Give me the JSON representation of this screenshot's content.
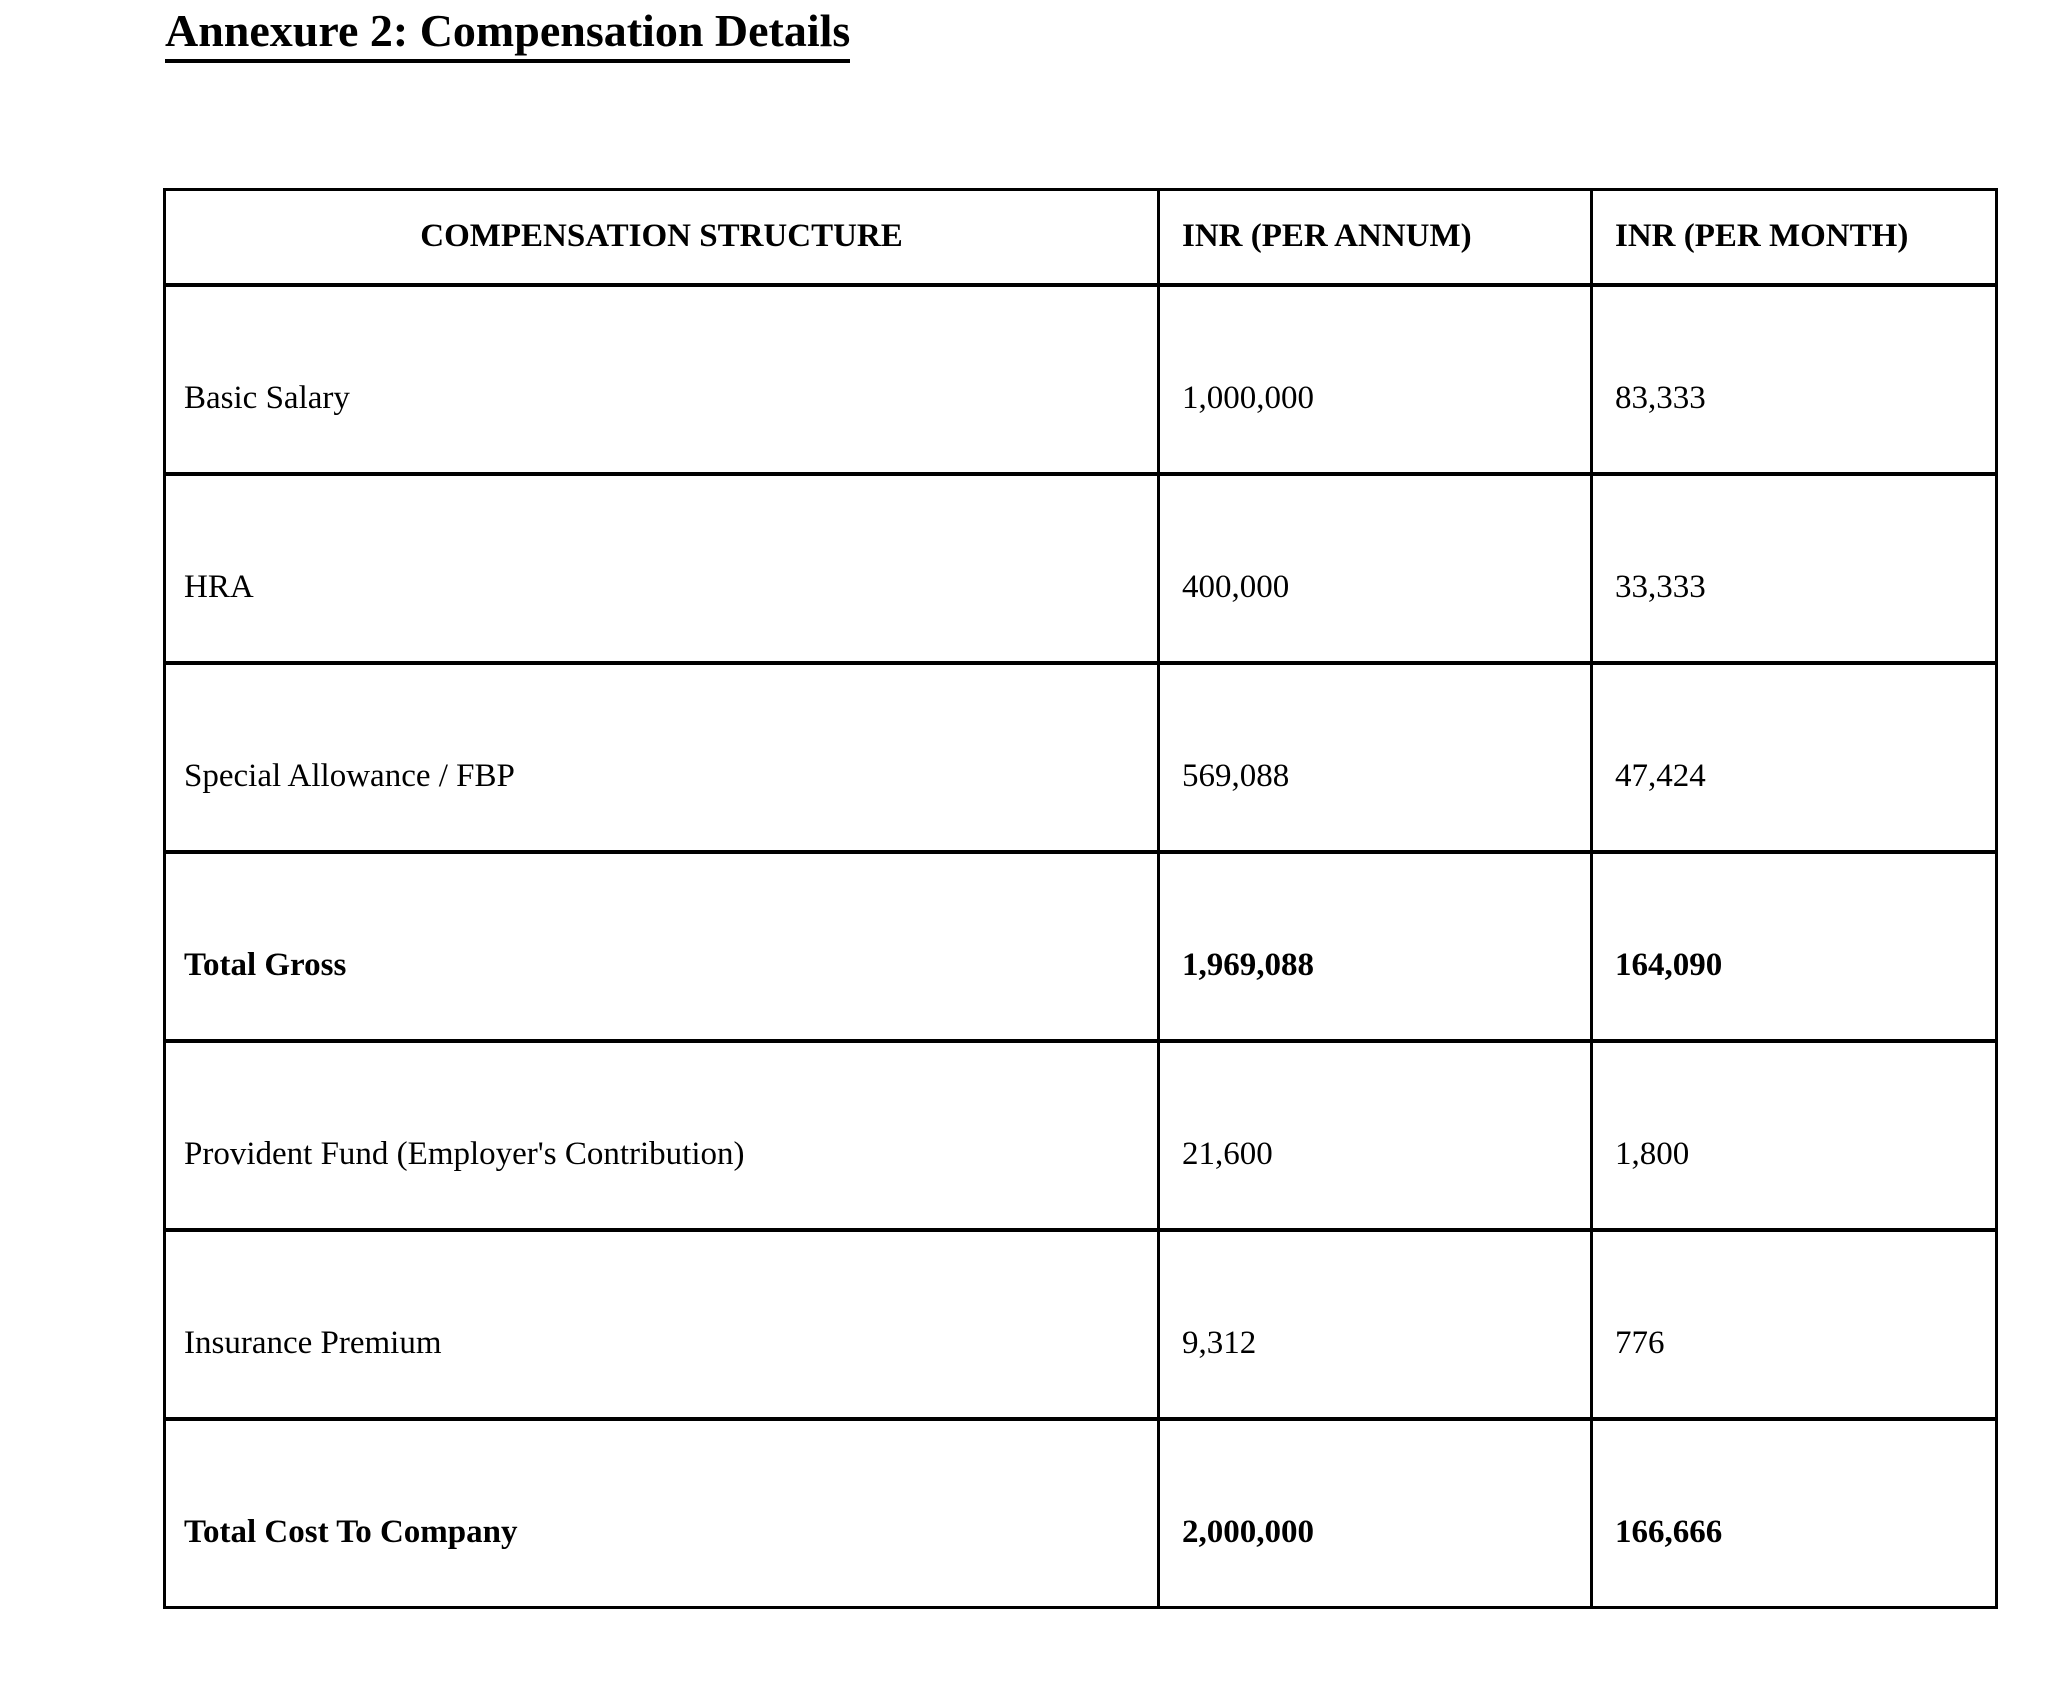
{
  "document": {
    "title": "Annexure 2: Compensation Details"
  },
  "table": {
    "headers": [
      "COMPENSATION STRUCTURE",
      "INR (PER ANNUM)",
      "INR (PER MONTH)"
    ],
    "rows": [
      {
        "label": "Basic Salary",
        "per_annum": "1,000,000",
        "per_month": "83,333",
        "bold": false
      },
      {
        "label": "HRA",
        "per_annum": "400,000",
        "per_month": "33,333",
        "bold": false
      },
      {
        "label": "Special Allowance / FBP",
        "per_annum": "569,088",
        "per_month": "47,424",
        "bold": false
      },
      {
        "label": "Total Gross",
        "per_annum": "1,969,088",
        "per_month": "164,090",
        "bold": true
      },
      {
        "label": "Provident Fund (Employer's Contribution)",
        "per_annum": "21,600",
        "per_month": "1,800",
        "bold": false
      },
      {
        "label": "Insurance Premium",
        "per_annum": "9,312",
        "per_month": "776",
        "bold": false
      },
      {
        "label": "Total Cost To Company",
        "per_annum": "2,000,000",
        "per_month": "166,666",
        "bold": true
      }
    ]
  },
  "colors": {
    "text": "#000000",
    "border": "#000000",
    "background": "#ffffff"
  }
}
